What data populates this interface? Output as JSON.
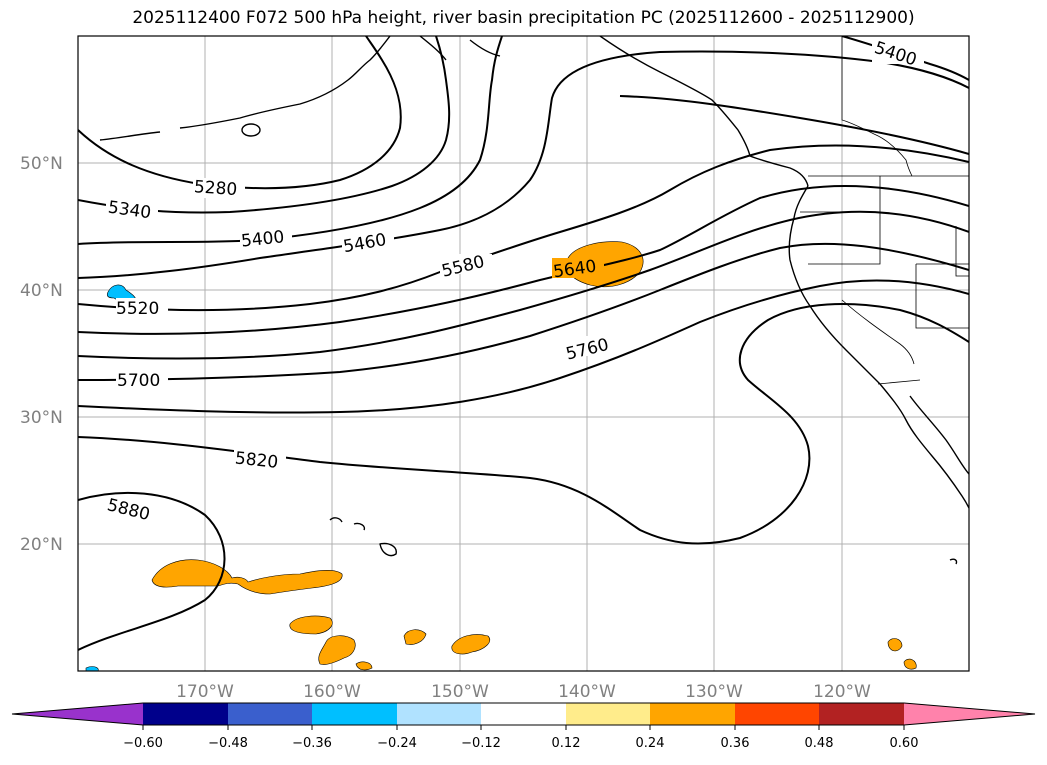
{
  "title": "2025112400 F072 500 hPa height, river basin precipitation PC (2025112600 - 2025112900)",
  "map": {
    "lat_ticks": [
      "50°N",
      "40°N",
      "30°N",
      "20°N"
    ],
    "lon_ticks": [
      "170°W",
      "160°W",
      "150°W",
      "140°W",
      "130°W",
      "120°W"
    ],
    "contour_labels": [
      "5400",
      "5280",
      "5340",
      "5400",
      "5460",
      "5580",
      "5640",
      "5520",
      "5700",
      "5760",
      "5820",
      "5880"
    ],
    "contour_color": "#000000",
    "gridlines": true
  },
  "colorbar": {
    "ticks": [
      "−0.60",
      "−0.48",
      "−0.36",
      "−0.24",
      "−0.12",
      "0.12",
      "0.24",
      "0.36",
      "0.48",
      "0.60"
    ],
    "colors": [
      "#9932cc",
      "#3060cc",
      "#00008b",
      "#3a5fcd",
      "#00bfff",
      "#b0e2ff",
      "#ffffff",
      "#ffec8b",
      "#ffa500",
      "#ff4500",
      "#b22222",
      "#ff82ab"
    ],
    "extend": "both"
  },
  "precip_colors": {
    "positive_orange": "#ffa500",
    "negative_blue": "#00bfff"
  }
}
